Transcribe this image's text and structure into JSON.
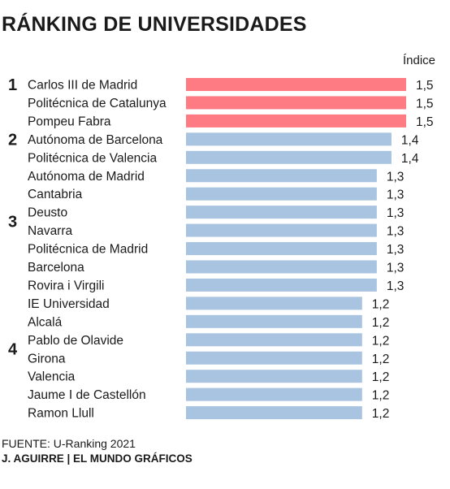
{
  "title": "RÁNKING DE UNIVERSIDADES",
  "source": "FUENTE: U-Ranking 2021",
  "credit": "J. AGUIRRE | EL MUNDO GRÁFICOS",
  "colors": {
    "highlight": "#ff7b83",
    "bar": "#a9c4e1",
    "text": "#1a1a1a"
  },
  "chart_data": {
    "type": "bar",
    "orientation": "horizontal",
    "value_header": "Índice",
    "categories": [
      "Carlos III de Madrid",
      "Politécnica de Catalunya",
      "Pompeu Fabra",
      "Autónoma de Barcelona",
      "Politécnica de Valencia",
      "Autónoma de Madrid",
      "Cantabria",
      "Deusto",
      "Navarra",
      "Politécnica de Madrid",
      "Barcelona",
      "Rovira i Virgili",
      "IE Universidad",
      "Alcalá",
      "Pablo de Olavide",
      "Girona",
      "Valencia",
      "Jaume I de Castellón",
      "Ramon Llull"
    ],
    "values": [
      1.5,
      1.5,
      1.5,
      1.4,
      1.4,
      1.3,
      1.3,
      1.3,
      1.3,
      1.3,
      1.3,
      1.3,
      1.2,
      1.2,
      1.2,
      1.2,
      1.2,
      1.2,
      1.2
    ],
    "value_labels": [
      "1,5",
      "1,5",
      "1,5",
      "1,4",
      "1,4",
      "1,3",
      "1,3",
      "1,3",
      "1,3",
      "1,3",
      "1,3",
      "1,3",
      "1,2",
      "1,2",
      "1,2",
      "1,2",
      "1,2",
      "1,2",
      "1,2"
    ],
    "highlighted": [
      true,
      true,
      true,
      false,
      false,
      false,
      false,
      false,
      false,
      false,
      false,
      false,
      false,
      false,
      false,
      false,
      false,
      false,
      false
    ],
    "rank_groups": [
      {
        "rank": "1",
        "first": 0,
        "last": 2
      },
      {
        "rank": "2",
        "first": 3,
        "last": 4
      },
      {
        "rank": "3",
        "first": 5,
        "last": 11
      },
      {
        "rank": "4",
        "first": 12,
        "last": 18
      }
    ],
    "xlim": [
      0,
      1.5
    ],
    "grid": false,
    "legend": "none"
  }
}
